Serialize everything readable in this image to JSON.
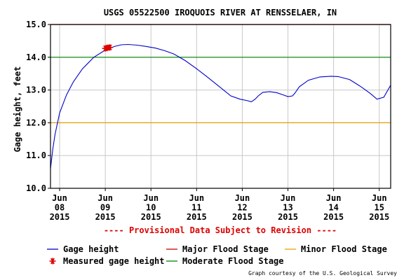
{
  "chart_data": {
    "type": "line",
    "title": "USGS 05522500 IROQUOIS RIVER AT RENSSELAER, IN",
    "ylabel": "Gage height, feet",
    "ylim": [
      10.0,
      15.0
    ],
    "yticks": [
      "10.0",
      "11.0",
      "12.0",
      "13.0",
      "14.0",
      "15.0"
    ],
    "xrange_days": [
      7.8,
      15.25
    ],
    "xticks": [
      {
        "day": 8,
        "lines": [
          "Jun",
          "08",
          "2015"
        ]
      },
      {
        "day": 9,
        "lines": [
          "Jun",
          "09",
          "2015"
        ]
      },
      {
        "day": 10,
        "lines": [
          "Jun",
          "10",
          "2015"
        ]
      },
      {
        "day": 11,
        "lines": [
          "Jun",
          "11",
          "2015"
        ]
      },
      {
        "day": 12,
        "lines": [
          "Jun",
          "12",
          "2015"
        ]
      },
      {
        "day": 13,
        "lines": [
          "Jun",
          "13",
          "2015"
        ]
      },
      {
        "day": 14,
        "lines": [
          "Jun",
          "14",
          "2015"
        ]
      },
      {
        "day": 15,
        "lines": [
          "Jun",
          "15",
          "2015"
        ]
      }
    ],
    "grid": true,
    "reference_lines": [
      {
        "name": "Major Flood Stage",
        "value": 15.0,
        "color": "#cc0000"
      },
      {
        "name": "Moderate Flood Stage",
        "value": 14.0,
        "color": "#008800"
      },
      {
        "name": "Minor Flood Stage",
        "value": 12.0,
        "color": "#e8a000"
      }
    ],
    "series": [
      {
        "name": "Gage height",
        "color": "#0000cc",
        "x_days": [
          7.8,
          7.85,
          7.9,
          8.0,
          8.15,
          8.3,
          8.5,
          8.75,
          9.0,
          9.2,
          9.35,
          9.5,
          9.7,
          9.9,
          10.1,
          10.3,
          10.5,
          10.75,
          11.0,
          11.25,
          11.5,
          11.75,
          11.95,
          12.1,
          12.2,
          12.28,
          12.35,
          12.45,
          12.6,
          12.75,
          12.9,
          13.0,
          13.1,
          13.15,
          13.25,
          13.45,
          13.7,
          13.95,
          14.1,
          14.35,
          14.6,
          14.8,
          14.95,
          15.1,
          15.25
        ],
        "y": [
          10.6,
          11.2,
          11.65,
          12.3,
          12.85,
          13.25,
          13.65,
          14.0,
          14.22,
          14.33,
          14.38,
          14.39,
          14.37,
          14.33,
          14.28,
          14.2,
          14.1,
          13.9,
          13.65,
          13.38,
          13.1,
          12.82,
          12.72,
          12.68,
          12.64,
          12.72,
          12.82,
          12.93,
          12.95,
          12.92,
          12.85,
          12.8,
          12.82,
          12.9,
          13.1,
          13.3,
          13.4,
          13.42,
          13.41,
          13.32,
          13.1,
          12.9,
          12.72,
          12.78,
          13.15
        ]
      },
      {
        "name": "Measured gage height",
        "color": "#dd0000",
        "marker": "asterisk",
        "x_days": [
          9.0,
          9.05,
          9.1
        ],
        "y": [
          14.27,
          14.29,
          14.3
        ]
      }
    ],
    "footer_note": "---- Provisional Data Subject to Revision ----",
    "legend": {
      "placement": "bottom",
      "items": [
        {
          "label": "Gage height",
          "kind": "line",
          "color": "#0000cc"
        },
        {
          "label": "Major Flood Stage",
          "kind": "line",
          "color": "#cc0000"
        },
        {
          "label": "Minor Flood Stage",
          "kind": "line",
          "color": "#e8a000"
        },
        {
          "label": "Measured gage height",
          "kind": "asterisk",
          "color": "#dd0000"
        },
        {
          "label": "Moderate Flood Stage",
          "kind": "line",
          "color": "#008800"
        }
      ]
    },
    "credit": "Graph courtesy of the U.S. Geological Survey"
  }
}
